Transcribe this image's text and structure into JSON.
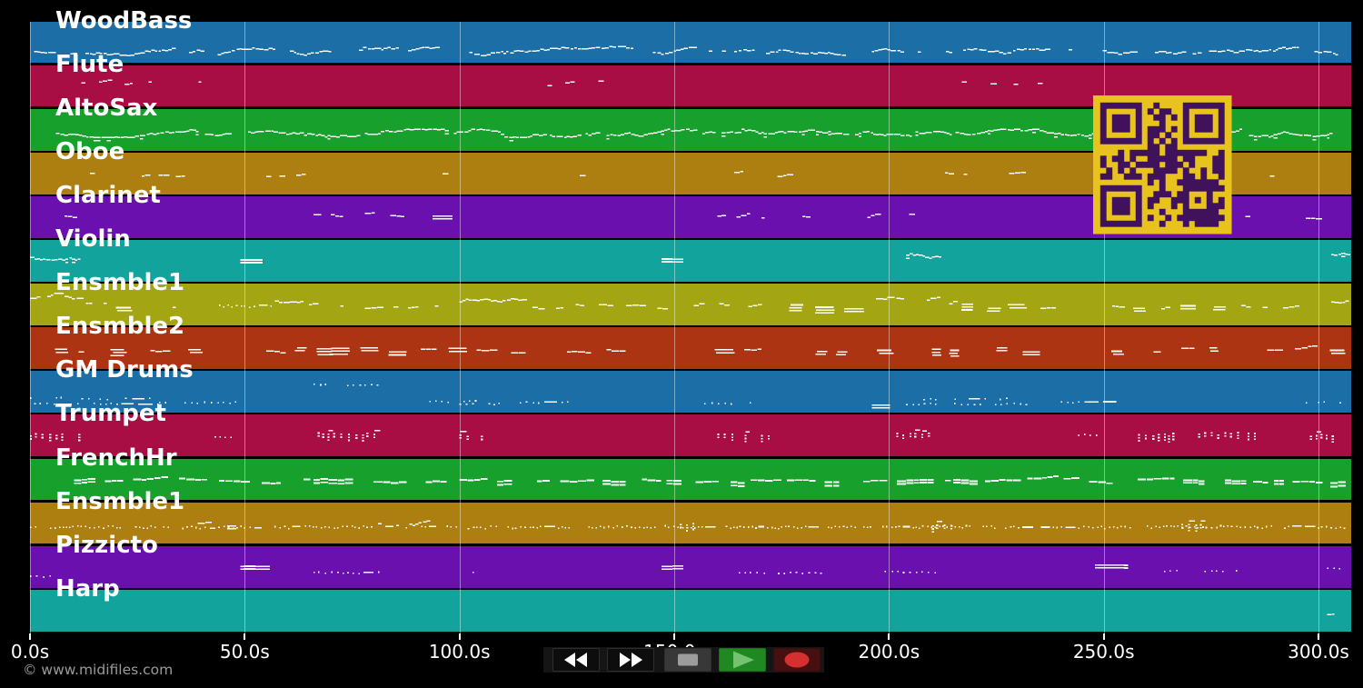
{
  "page": {
    "watermark": "© www.midifiles.com"
  },
  "colors": {
    "background": "#000000",
    "gridline": "rgba(255,255,255,0.42)",
    "track_label": "#ffffff",
    "axis_label": "#ffffff",
    "watermark": "#9a9a9a",
    "note": "rgba(255,255,255,0.97)"
  },
  "axis": {
    "tick_labels": [
      "0.0s",
      "50.0s",
      "100.0s",
      "150.0s",
      "200.0s",
      "250.0s",
      "300.0s"
    ],
    "tick_seconds": [
      0,
      50,
      100,
      150,
      200,
      250,
      300
    ]
  },
  "qr": {
    "bg": "#e9c31d",
    "fg": "#40125c",
    "modules": 21,
    "seed": 5
  },
  "transport": {
    "buttons": [
      {
        "id": "rewind",
        "bg": "#0d0d0d",
        "fg": "#ffffff",
        "border": "#2e2e2e"
      },
      {
        "id": "fast-forward",
        "bg": "#0d0d0d",
        "fg": "#ffffff",
        "border": "#2e2e2e"
      },
      {
        "id": "stop",
        "bg": "#383838",
        "fg": "#9c9c9c",
        "border": "#2e2e2e"
      },
      {
        "id": "play",
        "bg": "#1f8822",
        "fg": "#74c46f",
        "border": "#1a6e1d"
      },
      {
        "id": "record",
        "bg": "#461010",
        "fg": "#d52f2f",
        "border": "#380d0d"
      }
    ]
  },
  "tracks": [
    {
      "name": "WoodBass",
      "color": "#1b6ea6",
      "seed": 11,
      "phrases": [
        [
          1,
          33,
          0.68,
          0
        ],
        [
          37,
          95,
          0.7,
          0
        ],
        [
          99,
          140,
          0.68,
          0
        ],
        [
          145,
          190,
          0.7,
          0
        ],
        [
          196,
          242,
          0.68,
          0
        ],
        [
          248,
          295,
          0.7,
          0
        ],
        [
          299,
          306,
          0.68,
          0
        ]
      ]
    },
    {
      "name": "Flute",
      "color": "#a80d44",
      "seed": 22,
      "phrases": [
        [
          12,
          20,
          0.42,
          1
        ],
        [
          22,
          31,
          0.4,
          1
        ],
        [
          36,
          41,
          0.42,
          1
        ],
        [
          118,
          127,
          0.42,
          1
        ],
        [
          129,
          135,
          0.4,
          1
        ],
        [
          217,
          227,
          0.42,
          1
        ],
        [
          229,
          235,
          0.4,
          1
        ],
        [
          302,
          307,
          0.42,
          1
        ]
      ]
    },
    {
      "name": "AltoSax",
      "color": "#17a02b",
      "seed": 33,
      "phrases": [
        [
          6,
          303,
          0.55,
          8
        ]
      ]
    },
    {
      "name": "Oboe",
      "color": "#ad7f10",
      "seed": 44,
      "phrases": [
        [
          14,
          17,
          0.5,
          1
        ],
        [
          26,
          33,
          0.5,
          1
        ],
        [
          34,
          38,
          0.48,
          1
        ],
        [
          55,
          60,
          0.5,
          1
        ],
        [
          62,
          66,
          0.48,
          1
        ],
        [
          76,
          81,
          0.5,
          1
        ],
        [
          96,
          100,
          0.5,
          1
        ],
        [
          128,
          133,
          0.5,
          1
        ],
        [
          164,
          172,
          0.48,
          1
        ],
        [
          174,
          180,
          0.5,
          1
        ],
        [
          213,
          218,
          0.5,
          1
        ],
        [
          228,
          233,
          0.48,
          1
        ],
        [
          261,
          266,
          0.5,
          1
        ],
        [
          284,
          290,
          0.5,
          1
        ],
        [
          302,
          306,
          0.5,
          1
        ]
      ]
    },
    {
      "name": "Clarinet",
      "color": "#6a10ae",
      "seed": 55,
      "phrases": [
        [
          8,
          12,
          0.42,
          1
        ],
        [
          66,
          76,
          0.45,
          1
        ],
        [
          78,
          89,
          0.43,
          1
        ],
        [
          90,
          93,
          0.45,
          1
        ],
        [
          94,
          100,
          0.45,
          3
        ],
        [
          160,
          171,
          0.45,
          1
        ],
        [
          172,
          181,
          0.43,
          1
        ],
        [
          195,
          205,
          0.45,
          1
        ],
        [
          278,
          284,
          0.46,
          1
        ],
        [
          297,
          303,
          0.44,
          1
        ]
      ]
    },
    {
      "name": "Violin",
      "color": "#12a39c",
      "seed": 66,
      "phrases": [
        [
          0,
          12,
          0.38,
          8
        ],
        [
          49,
          54,
          0.44,
          5
        ],
        [
          147,
          152,
          0.42,
          5
        ],
        [
          204,
          212,
          0.33,
          8
        ],
        [
          303,
          307,
          0.32,
          8
        ]
      ]
    },
    {
      "name": "Ensmble1",
      "color": "#a4a513",
      "seed": 77,
      "phrases": [
        [
          0,
          12,
          0.32,
          0
        ],
        [
          13,
          19,
          0.45,
          1
        ],
        [
          20,
          24,
          0.5,
          3
        ],
        [
          27,
          31,
          0.45,
          1
        ],
        [
          31,
          36,
          0.5,
          1
        ],
        [
          37,
          41,
          0.5,
          3
        ],
        [
          44,
          57,
          0.5,
          7
        ],
        [
          57,
          63,
          0.38,
          0
        ],
        [
          65,
          76,
          0.45,
          1
        ],
        [
          78,
          85,
          0.5,
          1
        ],
        [
          88,
          95,
          0.52,
          1
        ],
        [
          100,
          115,
          0.4,
          0
        ],
        [
          117,
          125,
          0.5,
          1
        ],
        [
          127,
          150,
          0.5,
          3
        ],
        [
          152,
          175,
          0.46,
          1
        ],
        [
          177,
          195,
          0.52,
          3
        ],
        [
          197,
          203,
          0.33,
          0
        ],
        [
          205,
          215,
          0.4,
          1
        ],
        [
          217,
          230,
          0.5,
          3
        ],
        [
          232,
          255,
          0.5,
          1
        ],
        [
          257,
          280,
          0.52,
          3
        ],
        [
          282,
          303,
          0.5,
          1
        ],
        [
          303,
          307,
          0.4,
          0
        ]
      ]
    },
    {
      "name": "Ensmble2",
      "color": "#ad3412",
      "seed": 88,
      "phrases": [
        [
          6,
          12,
          0.5,
          3
        ],
        [
          19,
          23,
          0.52,
          3
        ],
        [
          28,
          31,
          0.5,
          3
        ],
        [
          37,
          40,
          0.52,
          3
        ],
        [
          55,
          67,
          0.5,
          3
        ],
        [
          70,
          73,
          0.5,
          3
        ],
        [
          77,
          100,
          0.5,
          3
        ],
        [
          104,
          118,
          0.52,
          3
        ],
        [
          125,
          140,
          0.5,
          3
        ],
        [
          155,
          172,
          0.52,
          3
        ],
        [
          183,
          200,
          0.5,
          3
        ],
        [
          210,
          218,
          0.52,
          3
        ],
        [
          225,
          240,
          0.5,
          3
        ],
        [
          252,
          262,
          0.52,
          3
        ],
        [
          268,
          282,
          0.5,
          3
        ],
        [
          288,
          304,
          0.5,
          3
        ]
      ]
    },
    {
      "name": "GM Drums",
      "color": "#1b6ea6",
      "seed": 99,
      "phrases": [
        [
          0,
          8,
          0.6,
          2
        ],
        [
          1,
          10,
          0.73,
          2
        ],
        [
          11,
          30,
          0.73,
          2
        ],
        [
          12,
          28,
          0.62,
          2
        ],
        [
          30,
          48,
          0.7,
          2
        ],
        [
          66,
          82,
          0.3,
          2
        ],
        [
          93,
          105,
          0.68,
          2
        ],
        [
          100,
          112,
          0.74,
          2
        ],
        [
          114,
          126,
          0.7,
          2
        ],
        [
          157,
          168,
          0.72,
          2
        ],
        [
          196,
          200,
          0.76,
          5
        ],
        [
          204,
          232,
          0.74,
          2
        ],
        [
          208,
          228,
          0.62,
          2
        ],
        [
          240,
          252,
          0.7,
          2
        ],
        [
          297,
          305,
          0.7,
          2
        ]
      ]
    },
    {
      "name": "Trumpet",
      "color": "#a80d44",
      "seed": 110,
      "phrases": [
        [
          0,
          12,
          0.45,
          4
        ],
        [
          43,
          50,
          0.5,
          2
        ],
        [
          67,
          81,
          0.42,
          4
        ],
        [
          100,
          106,
          0.45,
          4
        ],
        [
          160,
          172,
          0.45,
          4
        ],
        [
          199,
          210,
          0.42,
          4
        ],
        [
          244,
          249,
          0.45,
          2
        ],
        [
          258,
          268,
          0.44,
          4
        ],
        [
          272,
          285,
          0.42,
          4
        ],
        [
          298,
          305,
          0.45,
          4
        ]
      ]
    },
    {
      "name": "FrenchHr",
      "color": "#17a02b",
      "seed": 121,
      "phrases": [
        [
          7,
          22,
          0.5,
          6
        ],
        [
          24,
          40,
          0.48,
          6
        ],
        [
          44,
          64,
          0.5,
          6
        ],
        [
          66,
          75,
          0.48,
          6
        ],
        [
          80,
          98,
          0.5,
          6
        ],
        [
          100,
          112,
          0.5,
          6
        ],
        [
          118,
          150,
          0.48,
          6
        ],
        [
          155,
          190,
          0.5,
          6
        ],
        [
          194,
          214,
          0.5,
          6
        ],
        [
          215,
          252,
          0.48,
          6
        ],
        [
          256,
          292,
          0.5,
          6
        ],
        [
          294,
          306,
          0.5,
          6
        ]
      ]
    },
    {
      "name": "Ensmble1",
      "color": "#ad7f10",
      "seed": 132,
      "phrases": [
        [
          0,
          30,
          0.55,
          7
        ],
        [
          31,
          62,
          0.56,
          7
        ],
        [
          39,
          46,
          0.5,
          3
        ],
        [
          64,
          95,
          0.55,
          7
        ],
        [
          81,
          93,
          0.48,
          0
        ],
        [
          97,
          128,
          0.56,
          7
        ],
        [
          130,
          160,
          0.55,
          7
        ],
        [
          150,
          155,
          0.5,
          4
        ],
        [
          162,
          192,
          0.56,
          7
        ],
        [
          194,
          225,
          0.55,
          7
        ],
        [
          210,
          215,
          0.5,
          4
        ],
        [
          227,
          258,
          0.56,
          7
        ],
        [
          260,
          290,
          0.55,
          7
        ],
        [
          268,
          273,
          0.5,
          4
        ],
        [
          292,
          306,
          0.55,
          7
        ]
      ]
    },
    {
      "name": "Pizzicto",
      "color": "#6a10ae",
      "seed": 143,
      "phrases": [
        [
          0,
          6,
          0.68,
          2
        ],
        [
          49,
          55,
          0.45,
          5
        ],
        [
          66,
          82,
          0.6,
          2
        ],
        [
          103,
          106,
          0.6,
          2
        ],
        [
          147,
          152,
          0.45,
          5
        ],
        [
          165,
          185,
          0.6,
          2
        ],
        [
          199,
          211,
          0.58,
          2
        ],
        [
          248,
          255,
          0.42,
          5
        ],
        [
          264,
          281,
          0.55,
          2
        ],
        [
          302,
          305,
          0.5,
          2
        ]
      ]
    },
    {
      "name": "Harp",
      "color": "#12a39c",
      "seed": 154,
      "phrases": [
        [
          302,
          304,
          0.55,
          0
        ]
      ]
    }
  ]
}
